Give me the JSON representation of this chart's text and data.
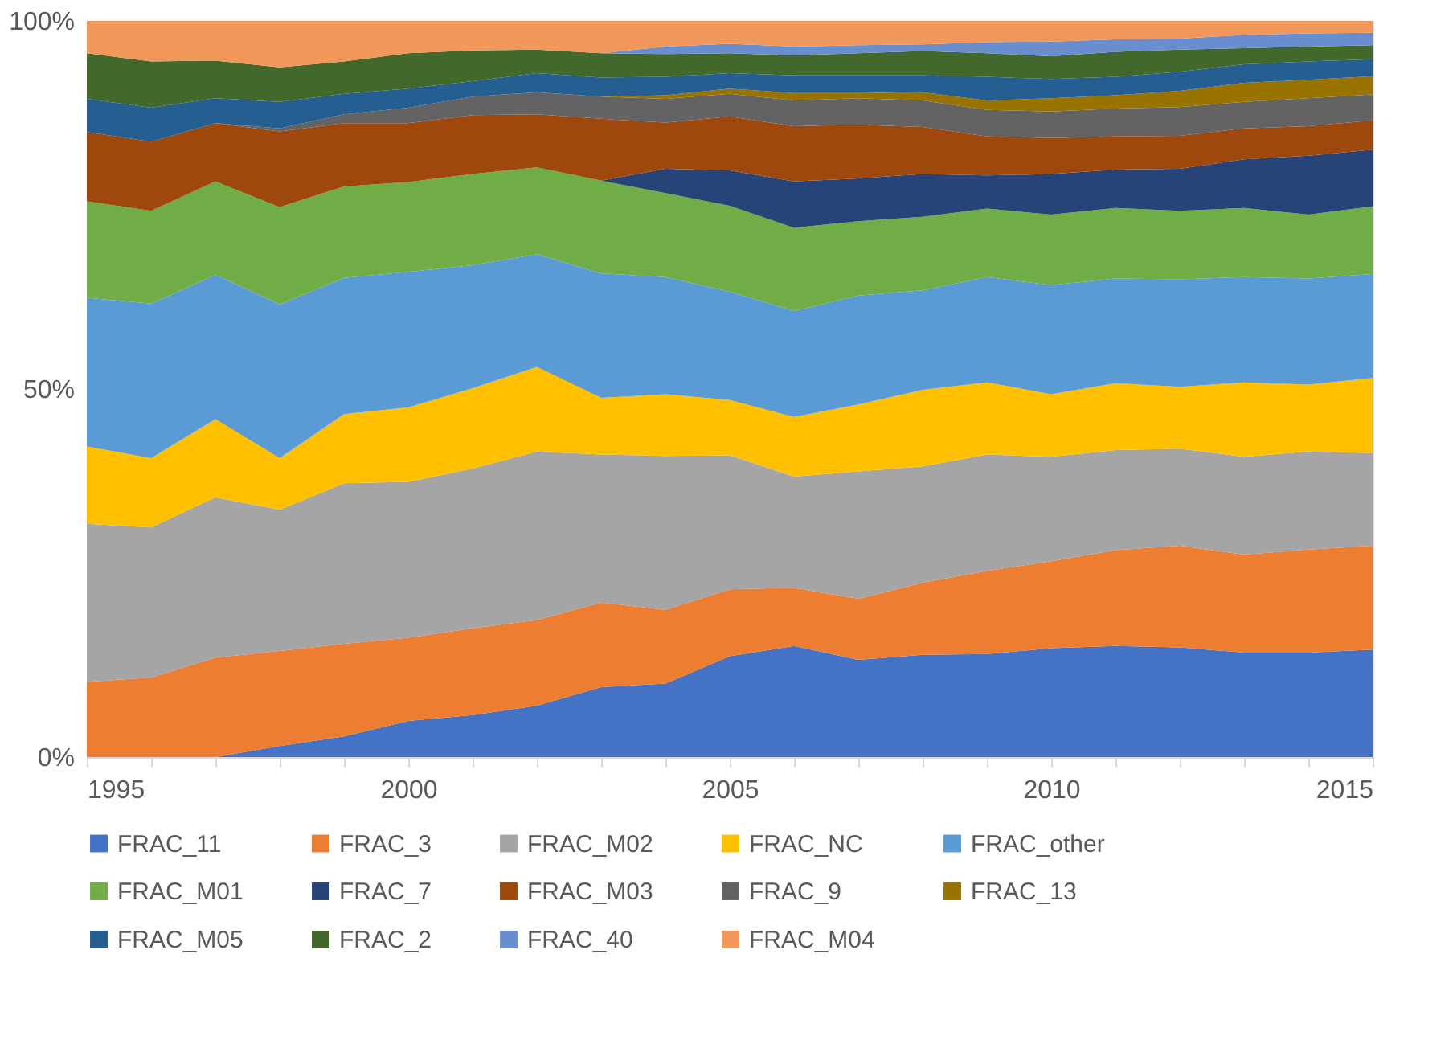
{
  "chart_data": {
    "type": "area",
    "stacked": true,
    "x": [
      1995,
      1996,
      1997,
      1998,
      1999,
      2000,
      2001,
      2002,
      2003,
      2004,
      2005,
      2006,
      2007,
      2008,
      2009,
      2010,
      2011,
      2012,
      2013,
      2014,
      2015
    ],
    "xlim": [
      1995,
      2015
    ],
    "xticks": [
      1995,
      {
        "value": 1996,
        "label": null
      },
      {
        "value": 1997,
        "label": null
      },
      {
        "value": 1998,
        "label": null
      },
      {
        "value": 1999,
        "label": null
      },
      2000,
      {
        "value": 2001,
        "label": null
      },
      {
        "value": 2002,
        "label": null
      },
      {
        "value": 2003,
        "label": null
      },
      {
        "value": 2004,
        "label": null
      },
      2005,
      {
        "value": 2006,
        "label": null
      },
      {
        "value": 2007,
        "label": null
      },
      {
        "value": 2008,
        "label": null
      },
      {
        "value": 2009,
        "label": null
      },
      2010,
      {
        "value": 2011,
        "label": null
      },
      {
        "value": 2012,
        "label": null
      },
      {
        "value": 2013,
        "label": null
      },
      {
        "value": 2014,
        "label": null
      },
      2015
    ],
    "ylim": [
      0,
      100
    ],
    "yticks": [
      {
        "value": 0,
        "label": "0%"
      },
      {
        "value": 50,
        "label": "50%"
      },
      {
        "value": 100,
        "label": "100%"
      }
    ],
    "grid": false,
    "legend": "bottom",
    "series": [
      {
        "name": "FRAC_11",
        "color": "#4472c4",
        "values": [
          0,
          0,
          0,
          1.5,
          2.8,
          4.9,
          5.7,
          7.0,
          9.5,
          10.0,
          13.7,
          15.1,
          13.2,
          13.9,
          14.0,
          14.8,
          15.1,
          14.9,
          14.2,
          14.2,
          14.6
        ]
      },
      {
        "name": "FRAC_3",
        "color": "#ed7d31",
        "values": [
          10.2,
          10.8,
          13.5,
          12.9,
          12.6,
          11.3,
          11.8,
          11.6,
          11.5,
          10.0,
          9.1,
          7.9,
          8.3,
          9.8,
          11.3,
          11.8,
          13.0,
          13.8,
          13.3,
          14.0,
          14.1
        ]
      },
      {
        "name": "FRAC_M02",
        "color": "#a5a5a5",
        "values": [
          21.5,
          20.4,
          21.8,
          19.2,
          21.8,
          21.2,
          21.7,
          22.9,
          20.1,
          20.9,
          18.2,
          15.1,
          17.3,
          15.8,
          15.8,
          14.2,
          13.6,
          13.2,
          13.3,
          13.3,
          12.6
        ]
      },
      {
        "name": "FRAC_NC",
        "color": "#ffc000",
        "values": [
          10.5,
          9.4,
          10.6,
          7.0,
          9.4,
          10.1,
          10.9,
          11.5,
          7.7,
          8.4,
          7.5,
          8.1,
          9.1,
          10.4,
          9.8,
          8.5,
          9.1,
          8.4,
          10.1,
          9.1,
          10.2
        ]
      },
      {
        "name": "FRAC_other",
        "color": "#5b9bd5",
        "values": [
          20.2,
          21.0,
          19.6,
          20.9,
          18.5,
          18.4,
          16.7,
          15.3,
          16.9,
          15.9,
          14.7,
          14.4,
          14.8,
          13.5,
          14.3,
          14.8,
          14.2,
          14.6,
          14.3,
          14.4,
          14.1
        ]
      },
      {
        "name": "FRAC_M01",
        "color": "#70ad47",
        "values": [
          13.1,
          12.6,
          12.7,
          13.2,
          12.4,
          12.2,
          12.4,
          11.8,
          12.6,
          11.4,
          11.7,
          11.3,
          10.1,
          10.0,
          9.3,
          9.6,
          9.6,
          9.3,
          9.4,
          8.7,
          9.2
        ]
      },
      {
        "name": "FRAC_7",
        "color": "#264478",
        "values": [
          0,
          0,
          0,
          0,
          0,
          0,
          0,
          0,
          0,
          3.3,
          4.8,
          6.3,
          5.8,
          5.8,
          4.5,
          5.5,
          5.2,
          5.7,
          6.6,
          8.0,
          7.7
        ]
      },
      {
        "name": "FRAC_M03",
        "color": "#9e480e",
        "values": [
          9.4,
          9.4,
          7.9,
          10.3,
          8.6,
          8.0,
          8.0,
          7.2,
          8.4,
          6.3,
          7.3,
          7.5,
          7.3,
          6.4,
          5.3,
          4.9,
          4.5,
          4.5,
          4.2,
          4.0,
          4.0
        ]
      },
      {
        "name": "FRAC_9",
        "color": "#636363",
        "values": [
          0,
          0,
          0,
          0.4,
          1.2,
          2.1,
          2.5,
          3.0,
          3.0,
          3.2,
          3.1,
          3.5,
          3.6,
          3.6,
          3.6,
          3.6,
          3.8,
          3.9,
          3.6,
          3.8,
          3.5
        ]
      },
      {
        "name": "FRAC_13",
        "color": "#997300",
        "values": [
          0,
          0,
          0,
          0,
          0,
          0,
          0,
          0,
          0,
          0.5,
          0.7,
          1.0,
          0.7,
          1.1,
          1.3,
          1.8,
          1.8,
          2.2,
          2.6,
          2.5,
          2.5
        ]
      },
      {
        "name": "FRAC_M05",
        "color": "#255e91",
        "values": [
          4.5,
          4.6,
          3.4,
          3.6,
          2.8,
          2.6,
          2.1,
          2.6,
          2.6,
          2.5,
          2.1,
          2.4,
          2.4,
          2.3,
          3.2,
          2.6,
          2.5,
          2.6,
          2.5,
          2.5,
          2.3
        ]
      },
      {
        "name": "FRAC_2",
        "color": "#43682b",
        "values": [
          6.2,
          6.3,
          5.1,
          4.7,
          4.4,
          4.8,
          4.2,
          3.2,
          3.3,
          3.1,
          2.7,
          2.7,
          3.0,
          3.3,
          3.2,
          3.1,
          3.4,
          3.0,
          2.2,
          2.0,
          1.9
        ]
      },
      {
        "name": "FRAC_40",
        "color": "#698ed0",
        "values": [
          0,
          0,
          0,
          0,
          0,
          0,
          0,
          0,
          0,
          1.0,
          1.3,
          1.2,
          1.1,
          0.9,
          1.5,
          2.0,
          1.7,
          1.5,
          1.8,
          1.8,
          1.7
        ]
      },
      {
        "name": "FRAC_M04",
        "color": "#f1975a",
        "values": [
          4.4,
          5.5,
          5.4,
          6.3,
          5.5,
          4.4,
          4.0,
          3.9,
          4.4,
          3.5,
          3.1,
          3.5,
          3.3,
          3.2,
          2.9,
          2.8,
          2.5,
          2.4,
          1.9,
          1.7,
          1.6
        ]
      }
    ]
  }
}
